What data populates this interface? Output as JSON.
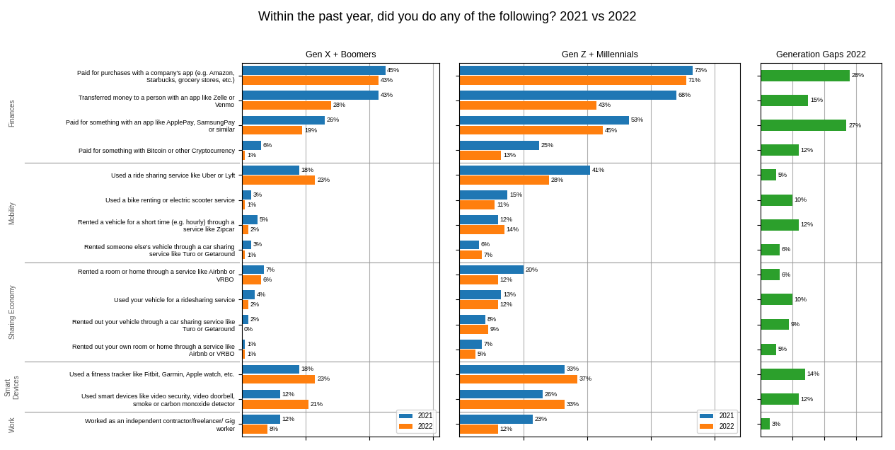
{
  "title": "Within the past year, did you do any of the following? 2021 vs 2022",
  "chart_data": [
    {
      "type": "bar",
      "orientation": "horizontal",
      "title": "Gen X + Boomers",
      "categories": [
        "Paid for purchases with a company's app (e.g. Amazon,\nStarbucks, grocery stores, etc.)",
        "Transferred money to a person with an app like Zelle or\nVenmo",
        "Paid for something with an app like ApplePay, SamsungPay\nor similar",
        "Paid for something with Bitcoin or other Cryptocurrency",
        "Used a ride sharing service like Uber or Lyft",
        "Used a bike renting or electric scooter service",
        "Rented a vehicle for a short time (e.g. hourly) through a\nservice like Zipcar",
        "Rented someone else's vehicle through a car sharing\nservice like Turo or Getaround",
        "Rented a room or home through a service like Airbnb or\nVRBO",
        "Used your vehicle for a ridesharing service",
        "Rented out your vehicle through a car sharing service like\nTuro or Getaround",
        "Rented out your own room or home through a service like\nAirbnb or VRBO",
        "Used a fitness tracker like Fitbit, Garmin, Apple watch, etc.",
        "Used smart devices like video security, video doorbell,\nsmoke or carbon monoxide detector",
        "Worked as an independent contractor/freelancer/ Gig\nworker"
      ],
      "series": [
        {
          "name": "2021",
          "values": [
            45,
            43,
            26,
            6,
            18,
            3,
            5,
            3,
            7,
            4,
            2,
            1,
            18,
            12,
            12
          ],
          "value_labels": [
            "45%",
            "43%",
            "26%",
            "6%",
            "18%",
            "3%",
            "5%",
            "3%",
            "7%",
            "4%",
            "2%",
            "1%",
            "18%",
            "12%",
            "12%"
          ]
        },
        {
          "name": "2022",
          "values": [
            43,
            28,
            19,
            1,
            23,
            1,
            2,
            1,
            6,
            2,
            0,
            1,
            23,
            21,
            8
          ],
          "value_labels": [
            "43%",
            "28%",
            "19%",
            "1%",
            "23%",
            "1%",
            "2%",
            "1%",
            "6%",
            "2%",
            "0%",
            "1%",
            "23%",
            "21%",
            "8%"
          ]
        }
      ],
      "xlim": [
        0,
        62
      ],
      "xticks": [
        20,
        40,
        60
      ],
      "grid": true,
      "data_labels": true,
      "tick_labels": "y",
      "legend": "lower right",
      "sections": [
        {
          "label": "Finances",
          "start": 0,
          "end": 4
        },
        {
          "label": "Mobility",
          "start": 4,
          "end": 8
        },
        {
          "label": "Sharing Economy",
          "start": 8,
          "end": 12
        },
        {
          "label": "Smart\nDevices",
          "start": 12,
          "end": 14
        },
        {
          "label": "Work",
          "start": 14,
          "end": 15
        }
      ]
    },
    {
      "type": "bar",
      "orientation": "horizontal",
      "title": "Gen Z + Millennials",
      "categories": [
        "Paid for purchases with a company's app (e.g. Amazon,\nStarbucks, grocery stores, etc.)",
        "Transferred money to a person with an app like Zelle or\nVenmo",
        "Paid for something with an app like ApplePay, SamsungPay\nor similar",
        "Paid for something with Bitcoin or other Cryptocurrency",
        "Used a ride sharing service like Uber or Lyft",
        "Used a bike renting or electric scooter service",
        "Rented a vehicle for a short time (e.g. hourly) through a\nservice like Zipcar",
        "Rented someone else's vehicle through a car sharing\nservice like Turo or Getaround",
        "Rented a room or home through a service like Airbnb or\nVRBO",
        "Used your vehicle for a ridesharing service",
        "Rented out your vehicle through a car sharing service like\nTuro or Getaround",
        "Rented out your own room or home through a service like\nAirbnb or VRBO",
        "Used a fitness tracker like Fitbit, Garmin, Apple watch, etc.",
        "Used smart devices like video security, video doorbell,\nsmoke or carbon monoxide detector",
        "Worked as an independent contractor/freelancer/ Gig\nworker"
      ],
      "series": [
        {
          "name": "2021",
          "values": [
            73,
            68,
            53,
            25,
            41,
            15,
            12,
            6,
            20,
            13,
            8,
            7,
            33,
            26,
            23
          ],
          "value_labels": [
            "73%",
            "68%",
            "53%",
            "25%",
            "41%",
            "15%",
            "12%",
            "6%",
            "20%",
            "13%",
            "8%",
            "7%",
            "33%",
            "26%",
            "23%"
          ]
        },
        {
          "name": "2022",
          "values": [
            71,
            43,
            45,
            13,
            28,
            11,
            14,
            7,
            12,
            12,
            9,
            5,
            37,
            33,
            12
          ],
          "value_labels": [
            "71%",
            "43%",
            "45%",
            "13%",
            "28%",
            "11%",
            "14%",
            "7%",
            "12%",
            "12%",
            "9%",
            "5%",
            "37%",
            "33%",
            "12%"
          ]
        }
      ],
      "xlim": [
        0,
        88
      ],
      "xticks": [
        20,
        40,
        60,
        80
      ],
      "grid": true,
      "data_labels": true,
      "tick_labels": false,
      "legend": "lower right"
    },
    {
      "type": "bar",
      "orientation": "horizontal",
      "title": "Generation Gaps 2022",
      "categories": [
        "Paid for purchases with a company's app (e.g. Amazon,\nStarbucks, grocery stores, etc.)",
        "Transferred money to a person with an app like Zelle or\nVenmo",
        "Paid for something with an app like ApplePay, SamsungPay\nor similar",
        "Paid for something with Bitcoin or other Cryptocurrency",
        "Used a ride sharing service like Uber or Lyft",
        "Used a bike renting or electric scooter service",
        "Rented a vehicle for a short time (e.g. hourly) through a\nservice like Zipcar",
        "Rented someone else's vehicle through a car sharing\nservice like Turo or Getaround",
        "Rented a room or home through a service like Airbnb or\nVRBO",
        "Used your vehicle for a ridesharing service",
        "Rented out your vehicle through a car sharing service like\nTuro or Getaround",
        "Rented out your own room or home through a service like\nAirbnb or VRBO",
        "Used a fitness tracker like Fitbit, Garmin, Apple watch, etc.",
        "Used smart devices like video security, video doorbell,\nsmoke or carbon monoxide detector",
        "Worked as an independent contractor/freelancer/ Gig\nworker"
      ],
      "values": [
        28,
        15,
        27,
        12,
        5,
        10,
        12,
        6,
        6,
        10,
        9,
        5,
        14,
        12,
        3
      ],
      "value_labels": [
        "28%",
        "15%",
        "27%",
        "12%",
        "5%",
        "10%",
        "12%",
        "6%",
        "6%",
        "10%",
        "9%",
        "5%",
        "14%",
        "12%",
        "3%"
      ],
      "xlim": [
        0,
        38
      ],
      "xticks": [
        10,
        20,
        30
      ],
      "grid": true,
      "data_labels": true,
      "tick_labels": false
    }
  ]
}
